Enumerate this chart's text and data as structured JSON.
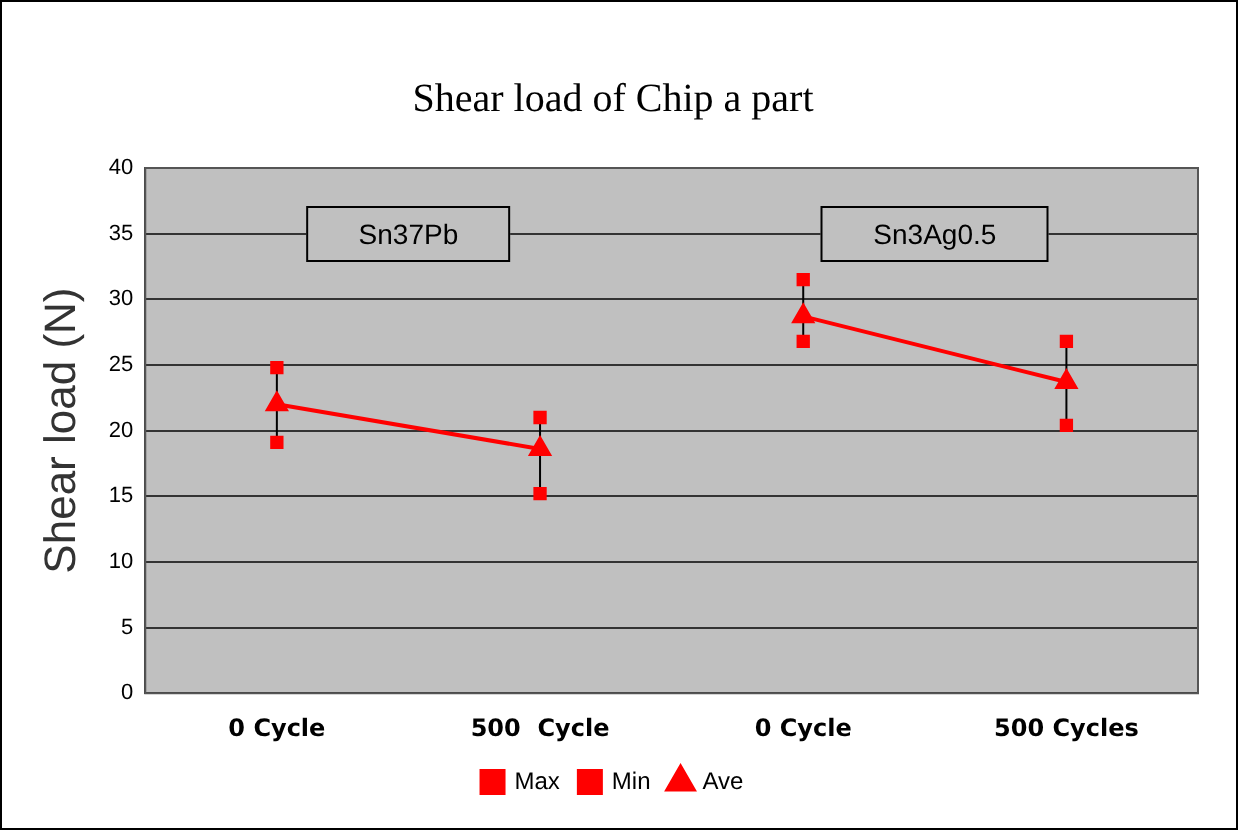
{
  "chart_data": {
    "type": "scatter",
    "title": "Shear load of Chip a part",
    "ylabel": "Shear load (N)",
    "categories": [
      "0 Cycle",
      "500  Cycle",
      "0 Cycle",
      "500 Cycles"
    ],
    "series": [
      {
        "name": "Max",
        "color": "#ff0000",
        "marker": "square",
        "values": [
          24.8,
          21.0,
          31.5,
          26.8
        ]
      },
      {
        "name": "Min",
        "color": "#ff0000",
        "marker": "square",
        "values": [
          19.1,
          15.2,
          26.8,
          20.4
        ]
      },
      {
        "name": "Ave",
        "type": "line",
        "color": "#ff0000",
        "marker": "triangle",
        "line_style": "solid",
        "values": [
          22.0,
          18.6,
          null,
          null
        ]
      },
      {
        "type": "line",
        "color": "#ff0000",
        "marker": "triangle",
        "line_style": "solid",
        "values": [
          null,
          null,
          28.7,
          23.7
        ]
      }
    ],
    "annotations": [
      "Sn37Pb",
      "Sn3Ag0.5"
    ],
    "ylim": [
      0,
      40
    ],
    "yticks": [
      0,
      5,
      10,
      15,
      20,
      25,
      30,
      35,
      40
    ],
    "grid": "y",
    "legend": "bottom"
  }
}
